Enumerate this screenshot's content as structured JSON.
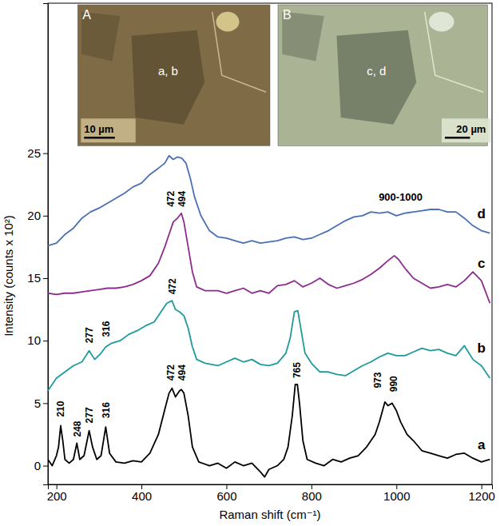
{
  "chart_data": {
    "type": "line",
    "x_label": "Raman shift (cm⁻¹)",
    "y_label": "Intensity (counts x 10²)",
    "xlim": [
      180,
      1225
    ],
    "ylim": [
      -1.5,
      37
    ],
    "xticks": [
      200,
      400,
      600,
      800,
      1000,
      1200
    ],
    "yticks": [
      0,
      5,
      10,
      15,
      20,
      25
    ],
    "grid": false,
    "series": [
      {
        "name": "a",
        "color": "#000000",
        "x": [
          180,
          190,
          200,
          205,
          210,
          215,
          220,
          230,
          240,
          248,
          255,
          265,
          277,
          285,
          295,
          305,
          316,
          325,
          340,
          360,
          380,
          400,
          420,
          440,
          455,
          465,
          472,
          480,
          490,
          494,
          500,
          510,
          520,
          535,
          560,
          580,
          600,
          620,
          640,
          660,
          680,
          690,
          700,
          720,
          735,
          745,
          755,
          762,
          767,
          772,
          780,
          790,
          810,
          830,
          850,
          870,
          890,
          910,
          930,
          950,
          960,
          973,
          980,
          990,
          1000,
          1010,
          1025,
          1040,
          1060,
          1080,
          1100,
          1120,
          1140,
          1160,
          1180,
          1200,
          1220
        ],
        "values": [
          0.5,
          0,
          0.8,
          1.5,
          3.2,
          2,
          0.5,
          0.2,
          0.5,
          1.8,
          0.5,
          0.8,
          2.8,
          1.5,
          0.5,
          0.8,
          3.1,
          1,
          0.3,
          0.2,
          0.4,
          0.3,
          1,
          2.5,
          4.5,
          5.8,
          6.2,
          5.5,
          6.0,
          6.1,
          5.8,
          4,
          1.5,
          0.3,
          0,
          0.2,
          -0.2,
          0.3,
          0,
          0.2,
          -0.5,
          -0.9,
          -0.3,
          0,
          0.5,
          1.5,
          4,
          6.5,
          6.5,
          5,
          2,
          0.5,
          0.2,
          0,
          0.5,
          0.3,
          0.6,
          0.8,
          1.5,
          2.5,
          3.5,
          5.1,
          4.8,
          5.0,
          4.4,
          3.5,
          2.5,
          2,
          1.2,
          1.0,
          0.8,
          0.6,
          0.9,
          1,
          0.6,
          0.3,
          0.5
        ]
      },
      {
        "name": "b",
        "color": "#1f9a9a",
        "x": [
          180,
          200,
          220,
          240,
          260,
          277,
          290,
          305,
          316,
          330,
          350,
          370,
          390,
          410,
          430,
          450,
          460,
          472,
          480,
          490,
          500,
          510,
          520,
          530,
          550,
          580,
          600,
          620,
          640,
          660,
          680,
          700,
          720,
          740,
          750,
          760,
          768,
          775,
          785,
          800,
          820,
          840,
          860,
          880,
          900,
          920,
          940,
          960,
          980,
          1000,
          1020,
          1040,
          1060,
          1080,
          1100,
          1120,
          1140,
          1160,
          1180,
          1200,
          1220
        ],
        "values": [
          6,
          7,
          7.5,
          8,
          8.3,
          9.2,
          8.5,
          9,
          9.5,
          9.8,
          10,
          10.5,
          10.8,
          11.2,
          11.5,
          12.5,
          13,
          13.2,
          12.5,
          12.3,
          12,
          11,
          9.5,
          8.5,
          8.2,
          8,
          8.3,
          8.6,
          8.3,
          8.5,
          8.1,
          8,
          8.2,
          9,
          10.2,
          12.3,
          12.4,
          11,
          9,
          8.2,
          7.5,
          7.5,
          7.3,
          7.2,
          7.6,
          8,
          8.3,
          8.7,
          9,
          8.8,
          8.8,
          9.1,
          9.4,
          9.2,
          9.3,
          9.0,
          8.8,
          9.6,
          8.5,
          8,
          7
        ]
      },
      {
        "name": "c",
        "color": "#8e2b8e",
        "x": [
          180,
          200,
          220,
          240,
          260,
          280,
          300,
          320,
          340,
          360,
          380,
          400,
          420,
          440,
          455,
          465,
          475,
          485,
          494,
          500,
          510,
          520,
          530,
          550,
          580,
          600,
          620,
          640,
          660,
          680,
          700,
          720,
          740,
          760,
          780,
          800,
          820,
          840,
          860,
          880,
          900,
          920,
          940,
          960,
          980,
          995,
          1005,
          1020,
          1040,
          1060,
          1080,
          1100,
          1120,
          1140,
          1160,
          1180,
          1200,
          1220
        ],
        "values": [
          13.8,
          13.7,
          13.8,
          13.8,
          13.9,
          14,
          14.1,
          14.2,
          14.2,
          14.3,
          14.5,
          14.8,
          15.2,
          16.2,
          17.5,
          18.5,
          19.5,
          19.8,
          20.2,
          19.5,
          17.5,
          15.5,
          14.3,
          14,
          14,
          13.8,
          14,
          14.2,
          13.8,
          14,
          13.8,
          14.4,
          14.5,
          14.8,
          14.3,
          14.6,
          15,
          14.5,
          14.2,
          14.4,
          14.6,
          14.9,
          15.3,
          15.8,
          16.4,
          16.8,
          16.5,
          15.8,
          15,
          14.6,
          14.2,
          14.3,
          14.5,
          14.3,
          14.8,
          15.5,
          14.8,
          13
        ]
      },
      {
        "name": "d",
        "color": "#4a6fb5",
        "x": [
          180,
          200,
          220,
          240,
          260,
          280,
          300,
          320,
          340,
          360,
          380,
          400,
          420,
          440,
          455,
          465,
          475,
          485,
          495,
          505,
          515,
          525,
          540,
          560,
          580,
          600,
          620,
          640,
          660,
          680,
          700,
          720,
          740,
          760,
          780,
          800,
          820,
          840,
          860,
          880,
          900,
          920,
          940,
          960,
          980,
          1000,
          1020,
          1040,
          1060,
          1080,
          1100,
          1120,
          1140,
          1160,
          1180,
          1200,
          1220
        ],
        "values": [
          17.6,
          17.8,
          18.5,
          19,
          19.8,
          20.3,
          20.6,
          21,
          21.4,
          21.8,
          22.3,
          22.6,
          23.3,
          23.8,
          24.2,
          24.8,
          24.5,
          24.7,
          24.6,
          24.2,
          23,
          21.5,
          20,
          18.8,
          18.3,
          18.2,
          18,
          17.8,
          18,
          17.8,
          17.9,
          18,
          18.2,
          18.3,
          18.1,
          18.2,
          18.5,
          18.8,
          19.2,
          19.6,
          19.9,
          20,
          20.3,
          20.2,
          20.3,
          20,
          20.2,
          20.3,
          20.4,
          20.5,
          20.5,
          20.3,
          20.3,
          19.8,
          19.2,
          18.8,
          18.6
        ]
      }
    ],
    "peak_labels": [
      {
        "text": "210",
        "x": 210,
        "y": 3.9
      },
      {
        "text": "248",
        "x": 248,
        "y": 2.3
      },
      {
        "text": "277",
        "x": 277,
        "y": 3.4
      },
      {
        "text": "316",
        "x": 316,
        "y": 3.8
      },
      {
        "text": "472",
        "x": 468,
        "y": 6.8
      },
      {
        "text": "494",
        "x": 494,
        "y": 6.8
      },
      {
        "text": "765",
        "x": 765,
        "y": 7.0
      },
      {
        "text": "973",
        "x": 955,
        "y": 6.2
      },
      {
        "text": "990",
        "x": 992,
        "y": 5.9
      },
      {
        "text": "277",
        "x": 277,
        "y": 9.8
      },
      {
        "text": "316",
        "x": 316,
        "y": 10.3
      },
      {
        "text": "472",
        "x": 472,
        "y": 13.7
      },
      {
        "text": "472",
        "x": 468,
        "y": 20.7
      },
      {
        "text": "494",
        "x": 494,
        "y": 20.7
      }
    ],
    "annotations": [
      {
        "text": "900-1000",
        "x": 1010,
        "y": 21.2
      }
    ],
    "insets": [
      {
        "label": "A",
        "spot": "a, b",
        "scale": "10 µm"
      },
      {
        "label": "B",
        "spot": "c, d",
        "scale": "20 µm"
      }
    ]
  }
}
